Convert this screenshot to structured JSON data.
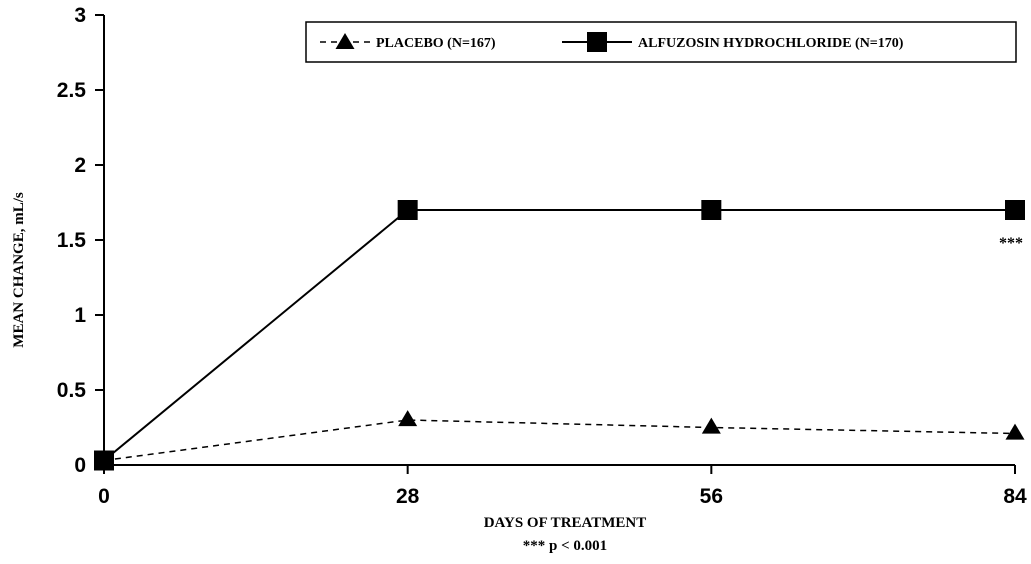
{
  "chart_data": {
    "type": "line",
    "x": [
      0,
      28,
      56,
      84
    ],
    "xlabel": "DAYS OF TREATMENT",
    "xlabel_note": "*** p < 0.001",
    "ylabel": "MEAN CHANGE, mL/s",
    "xlim": [
      0,
      84
    ],
    "ylim": [
      0,
      3
    ],
    "x_ticks": [
      "0",
      "28",
      "56",
      "84"
    ],
    "y_ticks": [
      "0",
      "0.5",
      "1",
      "1.5",
      "2",
      "2.5",
      "3"
    ],
    "y_tick_values": [
      0,
      0.5,
      1,
      1.5,
      2,
      2.5,
      3
    ],
    "grid": false,
    "legend_position": "top-right",
    "series": [
      {
        "name": "PLACEBO (N=167)",
        "values": [
          0.03,
          0.3,
          0.25,
          0.21
        ],
        "marker": "triangle",
        "line_style": "dashed",
        "color": "#000000"
      },
      {
        "name": "ALFUZOSIN HYDROCHLORIDE (N=170)",
        "values": [
          0.03,
          1.7,
          1.7,
          1.7
        ],
        "marker": "square",
        "line_style": "solid",
        "color": "#000000"
      }
    ],
    "annotations": [
      {
        "text": "***",
        "x": 84,
        "y": 1.5
      }
    ]
  }
}
